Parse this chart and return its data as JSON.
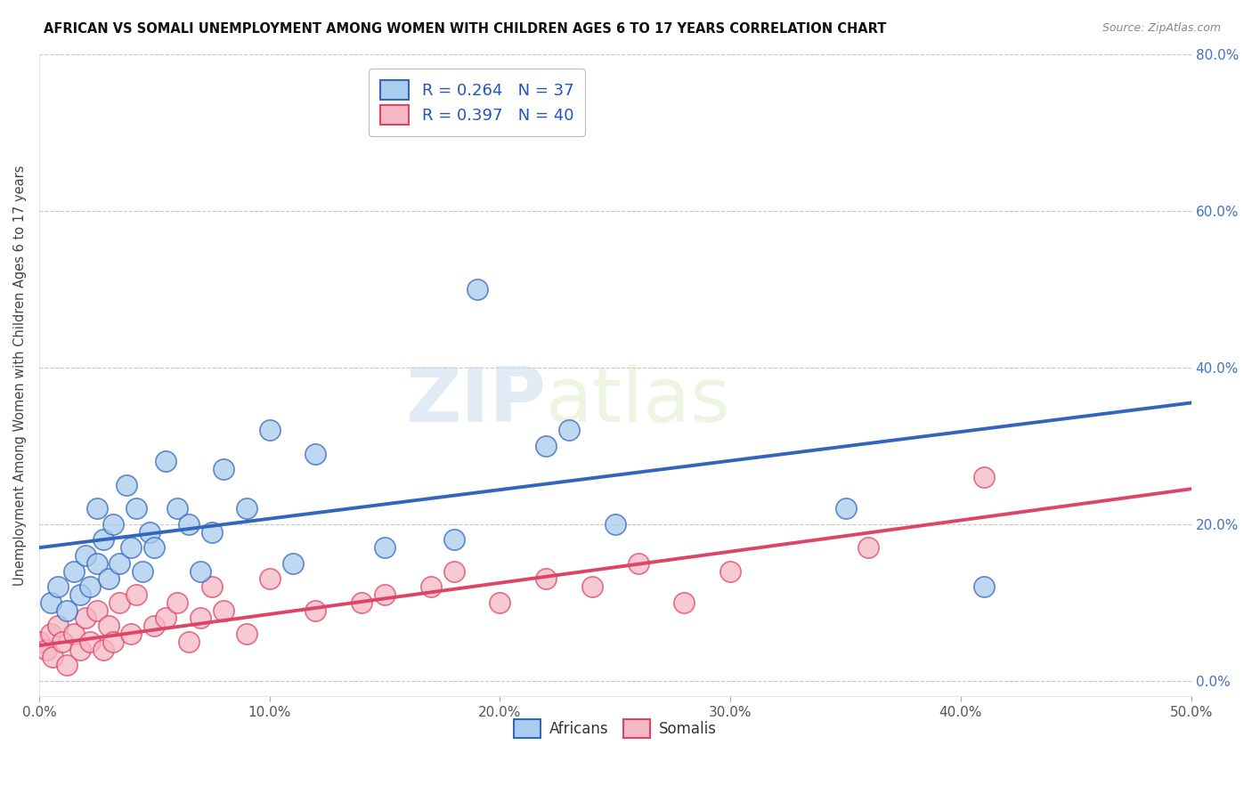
{
  "title": "AFRICAN VS SOMALI UNEMPLOYMENT AMONG WOMEN WITH CHILDREN AGES 6 TO 17 YEARS CORRELATION CHART",
  "source": "Source: ZipAtlas.com",
  "ylabel": "Unemployment Among Women with Children Ages 6 to 17 years",
  "xlim": [
    0.0,
    0.5
  ],
  "ylim": [
    -0.02,
    0.8
  ],
  "xticks": [
    0.0,
    0.1,
    0.2,
    0.3,
    0.4,
    0.5
  ],
  "yticks_right": [
    0.0,
    0.2,
    0.4,
    0.6,
    0.8
  ],
  "grid_color": "#c8c8c8",
  "background_color": "#ffffff",
  "watermark_zip": "ZIP",
  "watermark_atlas": "atlas",
  "africans_color": "#aaccee",
  "somalis_color": "#f5b8c4",
  "africans_line_color": "#3366bb",
  "somalis_line_color": "#dd4466",
  "legend_africans_label": "R = 0.264   N = 37",
  "legend_somalis_label": "R = 0.397   N = 40",
  "legend_bottom_africans": "Africans",
  "legend_bottom_somalis": "Somalis",
  "africans_x": [
    0.005,
    0.008,
    0.012,
    0.015,
    0.018,
    0.02,
    0.022,
    0.025,
    0.025,
    0.028,
    0.03,
    0.032,
    0.035,
    0.038,
    0.04,
    0.042,
    0.045,
    0.048,
    0.05,
    0.055,
    0.06,
    0.065,
    0.07,
    0.075,
    0.08,
    0.09,
    0.1,
    0.11,
    0.12,
    0.15,
    0.18,
    0.19,
    0.22,
    0.23,
    0.25,
    0.35,
    0.41
  ],
  "africans_y": [
    0.1,
    0.12,
    0.09,
    0.14,
    0.11,
    0.16,
    0.12,
    0.15,
    0.22,
    0.18,
    0.13,
    0.2,
    0.15,
    0.25,
    0.17,
    0.22,
    0.14,
    0.19,
    0.17,
    0.28,
    0.22,
    0.2,
    0.14,
    0.19,
    0.27,
    0.22,
    0.32,
    0.15,
    0.29,
    0.17,
    0.18,
    0.5,
    0.3,
    0.32,
    0.2,
    0.22,
    0.12
  ],
  "somalis_x": [
    0.0,
    0.003,
    0.005,
    0.006,
    0.008,
    0.01,
    0.012,
    0.015,
    0.018,
    0.02,
    0.022,
    0.025,
    0.028,
    0.03,
    0.032,
    0.035,
    0.04,
    0.042,
    0.05,
    0.055,
    0.06,
    0.065,
    0.07,
    0.075,
    0.08,
    0.09,
    0.1,
    0.12,
    0.14,
    0.15,
    0.17,
    0.18,
    0.2,
    0.22,
    0.24,
    0.26,
    0.28,
    0.3,
    0.36,
    0.41
  ],
  "somalis_y": [
    0.05,
    0.04,
    0.06,
    0.03,
    0.07,
    0.05,
    0.02,
    0.06,
    0.04,
    0.08,
    0.05,
    0.09,
    0.04,
    0.07,
    0.05,
    0.1,
    0.06,
    0.11,
    0.07,
    0.08,
    0.1,
    0.05,
    0.08,
    0.12,
    0.09,
    0.06,
    0.13,
    0.09,
    0.1,
    0.11,
    0.12,
    0.14,
    0.1,
    0.13,
    0.12,
    0.15,
    0.1,
    0.14,
    0.17,
    0.26
  ],
  "af_line_x0": 0.0,
  "af_line_y0": 0.17,
  "af_line_x1": 0.5,
  "af_line_y1": 0.355,
  "so_line_x0": 0.0,
  "so_line_y0": 0.045,
  "so_line_x1": 0.5,
  "so_line_y1": 0.245
}
